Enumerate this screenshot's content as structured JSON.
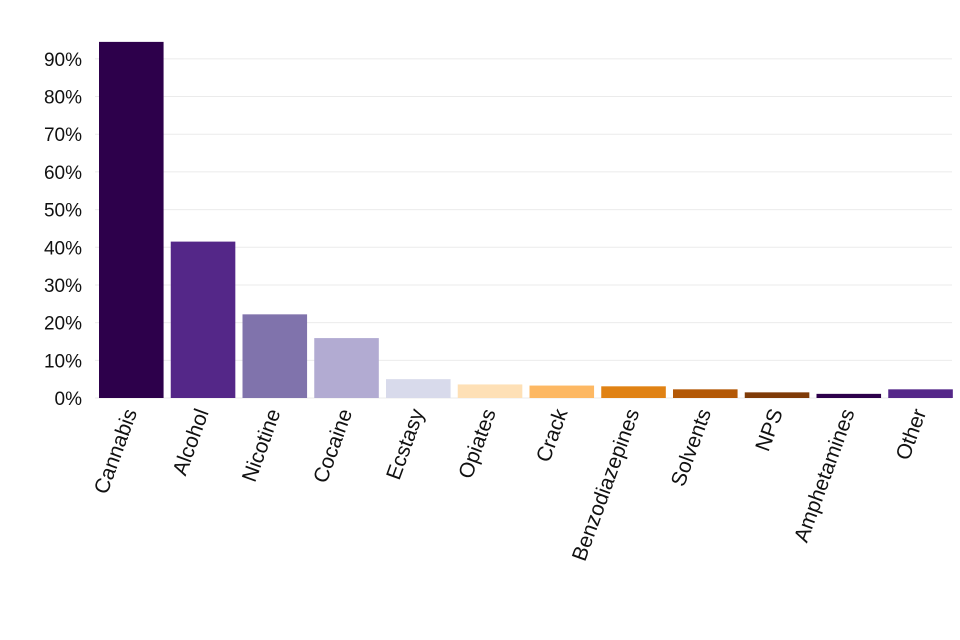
{
  "chart_data": {
    "type": "bar",
    "title": "",
    "xlabel": "",
    "ylabel": "",
    "categories": [
      "Cannabis",
      "Alcohol",
      "Nicotine",
      "Cocaine",
      "Ecstasy",
      "Opiates",
      "Crack",
      "Benzodiazepines",
      "Solvents",
      "NPS",
      "Amphetamines",
      "Other"
    ],
    "values": [
      94.5,
      41.5,
      22.2,
      15.9,
      5.0,
      3.6,
      3.3,
      3.1,
      2.3,
      1.5,
      1.1,
      2.3
    ],
    "colors": [
      "#2d004b",
      "#542788",
      "#8073ac",
      "#b2abd2",
      "#d8daeb",
      "#fee0b6",
      "#fdb863",
      "#e08214",
      "#b35806",
      "#7f3b08",
      "#2d004b",
      "#542788"
    ],
    "ylim": [
      0,
      95
    ],
    "yticks": [
      0,
      10,
      20,
      30,
      40,
      50,
      60,
      70,
      80,
      90
    ],
    "ytick_labels": [
      "0%",
      "10%",
      "20%",
      "30%",
      "40%",
      "50%",
      "60%",
      "70%",
      "80%",
      "90%"
    ],
    "grid": true,
    "legend": "none"
  }
}
